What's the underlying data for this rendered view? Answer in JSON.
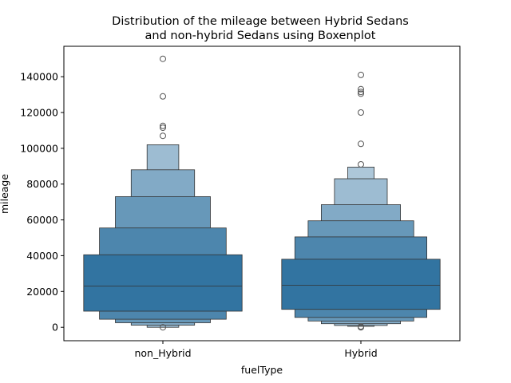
{
  "chart_data": {
    "type": "boxen",
    "title_lines": [
      "Distribution of the mileage between Hybrid Sedans",
      "and non-hybrid Sedans using Boxenplot"
    ],
    "xlabel": "fuelType",
    "ylabel": "mileage",
    "categories": [
      "non_Hybrid",
      "Hybrid"
    ],
    "ylim": [
      -7500,
      157000
    ],
    "yticks": [
      0,
      20000,
      40000,
      60000,
      80000,
      100000,
      120000,
      140000
    ],
    "ytick_labels": [
      "0",
      "20000",
      "40000",
      "60000",
      "80000",
      "100000",
      "120000",
      "140000"
    ],
    "grid": false,
    "colors": {
      "base": "#3274a1",
      "edge": "#333333",
      "outlier_edge": "#555555"
    },
    "series": [
      {
        "category": "non_Hybrid",
        "median": 23000,
        "levels": [
          [
            9000,
            40500
          ],
          [
            4500,
            55500
          ],
          [
            2500,
            73000
          ],
          [
            1200,
            88000
          ],
          [
            0,
            102000
          ]
        ],
        "outliers": [
          0,
          107000,
          111500,
          112500,
          129000,
          150000
        ]
      },
      {
        "category": "Hybrid",
        "median": 23500,
        "levels": [
          [
            10000,
            38000
          ],
          [
            5500,
            50500
          ],
          [
            3500,
            59500
          ],
          [
            2000,
            68500
          ],
          [
            1000,
            83000
          ],
          [
            500,
            89500
          ]
        ],
        "outliers": [
          0,
          500,
          91000,
          102500,
          120000,
          130500,
          131500,
          133000,
          141000
        ]
      }
    ]
  }
}
